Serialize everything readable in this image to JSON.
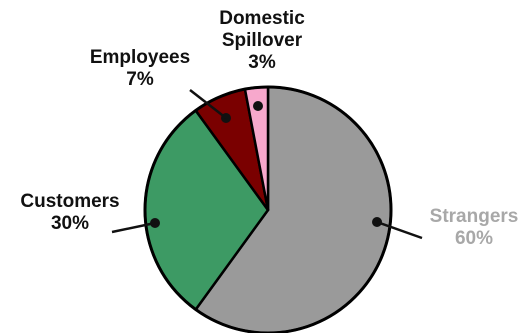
{
  "chart_data": {
    "type": "pie",
    "start_angle_deg": 0,
    "direction": "clockwise",
    "legend": "none",
    "slices": [
      {
        "label_lines": [
          "Strangers"
        ],
        "value_label": "60%",
        "value": 60,
        "color": "#9a9a9a",
        "text_color": "#a8a8a8"
      },
      {
        "label_lines": [
          "Customers"
        ],
        "value_label": "30%",
        "value": 30,
        "color": "#3d9a64",
        "text_color": "#111111"
      },
      {
        "label_lines": [
          "Employees"
        ],
        "value_label": "7%",
        "value": 7,
        "color": "#7a0000",
        "text_color": "#111111"
      },
      {
        "label_lines": [
          "Domestic",
          "Spillover"
        ],
        "value_label": "3%",
        "value": 3,
        "color": "#f7a8cc",
        "text_color": "#111111"
      }
    ]
  }
}
